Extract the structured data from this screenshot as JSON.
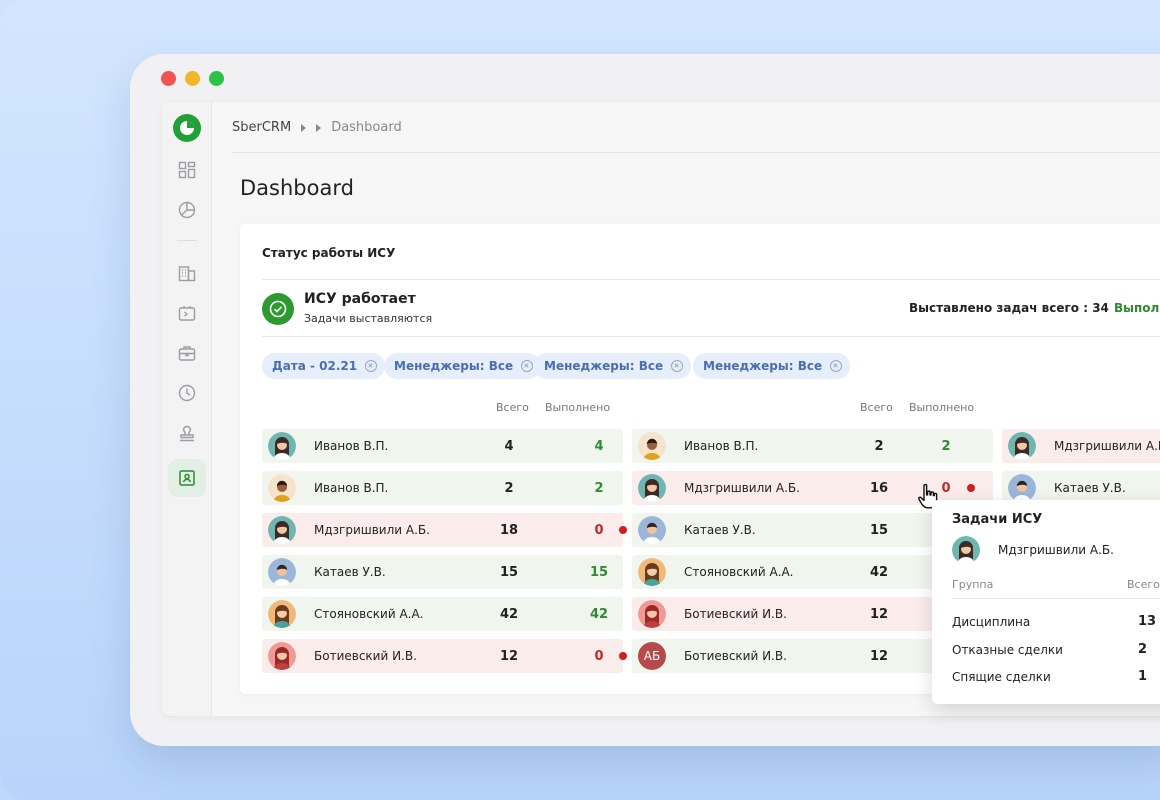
{
  "app": {
    "brand": "SberCRM",
    "breadcrumb_current": "Dashboard",
    "page_title": "Dashboard"
  },
  "colors": {
    "accent": "#21a038",
    "ok": "#2d8a2f",
    "bad": "#c02b2b",
    "chip_text": "#4a6fb0"
  },
  "sidebar": {
    "icons": [
      "dashboard-grid-icon",
      "pie-chart-icon",
      "building-icon",
      "terminal-icon",
      "briefcase-icon",
      "clock-icon",
      "stamp-icon",
      "contact-card-icon"
    ],
    "active": "contact-card-icon"
  },
  "card": {
    "title": "Статус работы ИСУ",
    "status_title": "ИСУ работает",
    "status_sub": "Задачи выставляются",
    "total_tasks": "Выставлено задач всего : 34",
    "done_label": "Выпол"
  },
  "filters": [
    {
      "label": "Дата - 02.21"
    },
    {
      "label": "Менеджеры: Все"
    },
    {
      "label": "Менеджеры: Все"
    },
    {
      "label": "Менеджеры: Все"
    }
  ],
  "columns": {
    "total": "Всего",
    "done": "Выполнено"
  },
  "table_left": [
    {
      "name": "Иванов В.П.",
      "total": "4",
      "done": "4",
      "status": "ok",
      "avatar": "woman-teal"
    },
    {
      "name": "Иванов В.П.",
      "total": "2",
      "done": "2",
      "status": "ok",
      "avatar": "man-dark"
    },
    {
      "name": "Мдзгришвили А.Б.",
      "total": "18",
      "done": "0",
      "status": "bad",
      "avatar": "woman-teal"
    },
    {
      "name": "Катаев У.В.",
      "total": "15",
      "done": "15",
      "status": "ok",
      "avatar": "man-blue"
    },
    {
      "name": "Стояновский А.А.",
      "total": "42",
      "done": "42",
      "status": "ok",
      "avatar": "woman-orange"
    },
    {
      "name": "Ботиевский И.В.",
      "total": "12",
      "done": "0",
      "status": "bad",
      "avatar": "woman-red"
    }
  ],
  "table_mid": [
    {
      "name": "Иванов В.П.",
      "total": "2",
      "done": "2",
      "status": "ok",
      "avatar": "man-dark"
    },
    {
      "name": "Мдзгришвили А.Б.",
      "total": "16",
      "done": "0",
      "status": "bad",
      "avatar": "woman-teal"
    },
    {
      "name": "Катаев У.В.",
      "total": "15",
      "done": "",
      "status": "ok",
      "avatar": "man-blue"
    },
    {
      "name": "Стояновский А.А.",
      "total": "42",
      "done": "",
      "status": "ok",
      "avatar": "woman-orange"
    },
    {
      "name": "Ботиевский И.В.",
      "total": "12",
      "done": "",
      "status": "bad",
      "avatar": "woman-red"
    },
    {
      "name": "Ботиевский И.В.",
      "total": "12",
      "done": "",
      "status": "ok",
      "avatar": "initials",
      "initials": "АБ"
    }
  ],
  "table_right": [
    {
      "name": "Мдзгришвили А.Б",
      "status": "bad",
      "avatar": "woman-teal"
    },
    {
      "name": "Катаев У.В.",
      "status": "ok",
      "avatar": "man-blue"
    }
  ],
  "popup": {
    "title": "Задачи ИСУ",
    "name": "Мдзгришвили А.Б.",
    "col_group": "Группа",
    "col_total": "Всего",
    "rows": [
      {
        "label": "Дисциплина",
        "value": "13"
      },
      {
        "label": "Отказные сделки",
        "value": "2"
      },
      {
        "label": "Спящие сделки",
        "value": "1"
      }
    ]
  }
}
